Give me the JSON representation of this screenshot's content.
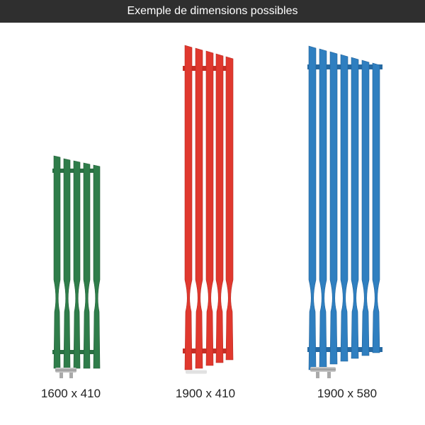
{
  "header": {
    "title": "Exemple de dimensions possibles"
  },
  "colors": {
    "header_bg": "#2f2f2f",
    "green": "#2f7d4a",
    "red": "#e0382e",
    "blue": "#2f7fc0"
  },
  "radiators": [
    {
      "label": "1600 x 410",
      "color_name": "green",
      "height_mm": 1600,
      "width_mm": 410,
      "bars": 5
    },
    {
      "label": "1900 x 410",
      "color_name": "red",
      "height_mm": 1900,
      "width_mm": 410,
      "bars": 5
    },
    {
      "label": "1900 x 580",
      "color_name": "blue",
      "height_mm": 1900,
      "width_mm": 580,
      "bars": 7
    }
  ]
}
